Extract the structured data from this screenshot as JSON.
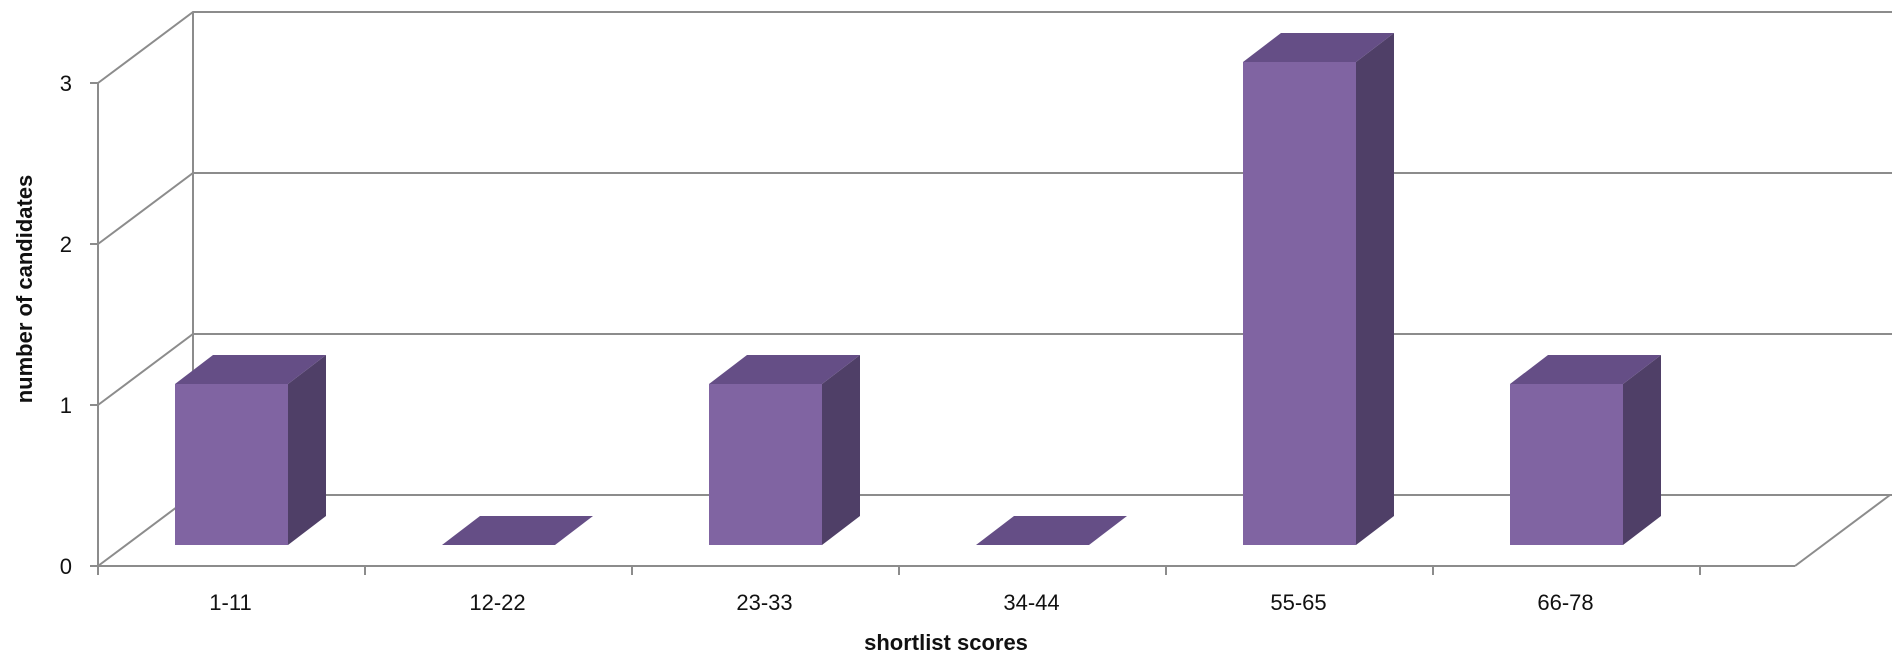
{
  "chart_data": {
    "type": "bar",
    "categories": [
      "1-11",
      "12-22",
      "23-33",
      "34-44",
      "55-65",
      "66-78"
    ],
    "values": [
      1,
      0,
      1,
      0,
      3,
      1
    ],
    "title": "",
    "xlabel": "shortlist scores",
    "ylabel": "number of candidates",
    "ylim": [
      0,
      3
    ],
    "yticks": [
      "0",
      "1",
      "2",
      "3"
    ],
    "grid": true,
    "legend": "none",
    "three_d": true,
    "colors": {
      "bar_front": "#8064A2",
      "bar_top": "#654E86",
      "bar_side": "#4F3F67",
      "grid": "#8C8C8C",
      "axis": "#8C8C8C"
    }
  }
}
